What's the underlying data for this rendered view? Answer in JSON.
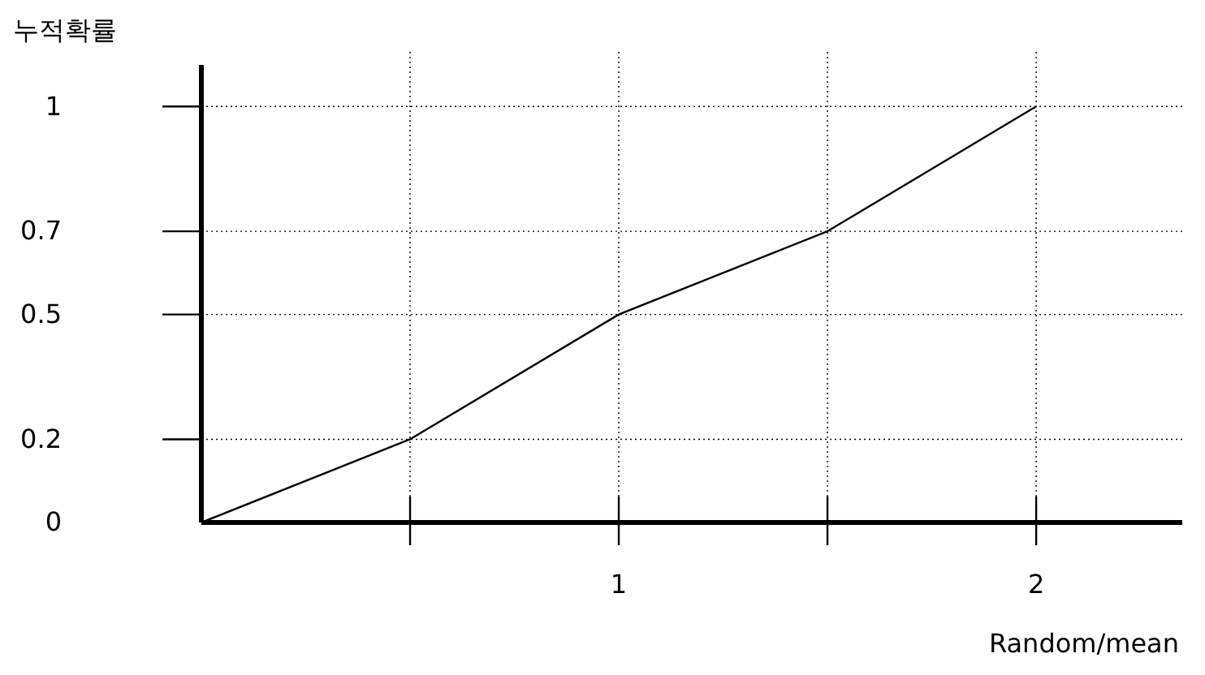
{
  "chart_data": {
    "type": "line",
    "ylabel": "누적확률",
    "xlabel": "Random/mean",
    "x": [
      0,
      0.5,
      1,
      1.5,
      2
    ],
    "series": [
      {
        "color": "#000000",
        "values": [
          0,
          0.2,
          0.5,
          0.7,
          1
        ]
      }
    ],
    "xlim": [
      0,
      2.35
    ],
    "ylim": [
      0,
      1.1
    ],
    "xticks": [
      {
        "value": 0.5,
        "label": null
      },
      1,
      {
        "value": 1.5,
        "label": null
      },
      2
    ],
    "yticks": [
      0,
      0.2,
      0.5,
      0.7,
      1
    ],
    "grid": true,
    "marker": "none",
    "line_style": "solid"
  }
}
